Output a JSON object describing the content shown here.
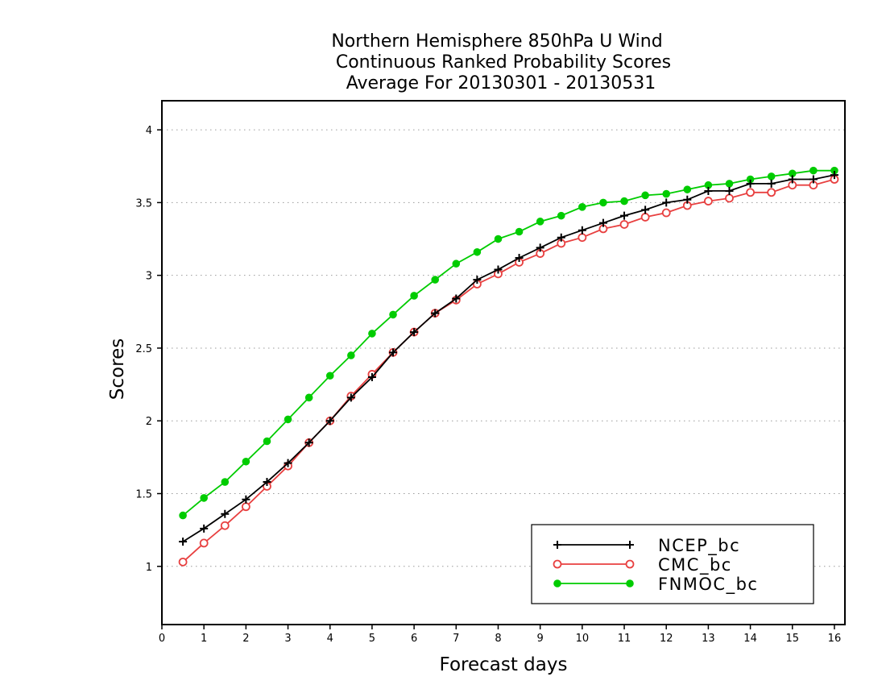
{
  "chart_data": {
    "type": "line",
    "title": [
      "Northern Hemisphere 850hPa U Wind",
      "Continuous Ranked Probability Scores",
      "Average For 20130301 - 20130531"
    ],
    "xlabel": "Forecast days",
    "ylabel": "Scores",
    "xlim": [
      0,
      16.25
    ],
    "ylim": [
      0.6,
      4.2
    ],
    "x_ticks": [
      0,
      1,
      2,
      3,
      4,
      5,
      6,
      7,
      8,
      9,
      10,
      11,
      12,
      13,
      14,
      15,
      16
    ],
    "y_ticks": [
      1,
      1.5,
      2,
      2.5,
      3,
      3.5,
      4
    ],
    "y_tick_labels": [
      "1",
      "1.5",
      "2",
      "2.5",
      "3",
      "3.5",
      "4"
    ],
    "grid": "horizontal dotted",
    "legend_position": "bottom-right",
    "x": [
      0.5,
      1,
      1.5,
      2,
      2.5,
      3,
      3.5,
      4,
      4.5,
      5,
      5.5,
      6,
      6.5,
      7,
      7.5,
      8,
      8.5,
      9,
      9.5,
      10,
      10.5,
      11,
      11.5,
      12,
      12.5,
      13,
      13.5,
      14,
      14.5,
      15,
      15.5,
      16
    ],
    "series": [
      {
        "name": "NCEP_bc",
        "color": "#000000",
        "marker": "plus",
        "values": [
          1.17,
          1.26,
          1.36,
          1.46,
          1.58,
          1.71,
          1.85,
          2.0,
          2.16,
          2.3,
          2.47,
          2.61,
          2.74,
          2.84,
          2.97,
          3.04,
          3.12,
          3.19,
          3.26,
          3.31,
          3.36,
          3.41,
          3.45,
          3.5,
          3.52,
          3.58,
          3.58,
          3.63,
          3.63,
          3.66,
          3.66,
          3.69
        ]
      },
      {
        "name": "CMC_bc",
        "color": "#e84040",
        "marker": "open-circle",
        "values": [
          1.03,
          1.16,
          1.28,
          1.41,
          1.55,
          1.69,
          1.85,
          2.0,
          2.17,
          2.32,
          2.47,
          2.61,
          2.74,
          2.83,
          2.94,
          3.01,
          3.09,
          3.15,
          3.22,
          3.26,
          3.32,
          3.35,
          3.4,
          3.43,
          3.48,
          3.51,
          3.53,
          3.57,
          3.57,
          3.62,
          3.62,
          3.66
        ]
      },
      {
        "name": "FNMOC_bc",
        "color": "#00cc00",
        "marker": "filled-circle",
        "values": [
          1.35,
          1.47,
          1.58,
          1.72,
          1.86,
          2.01,
          2.16,
          2.31,
          2.45,
          2.6,
          2.73,
          2.86,
          2.97,
          3.08,
          3.16,
          3.25,
          3.3,
          3.37,
          3.41,
          3.47,
          3.5,
          3.51,
          3.55,
          3.56,
          3.59,
          3.62,
          3.63,
          3.66,
          3.68,
          3.7,
          3.72,
          3.72
        ]
      }
    ]
  }
}
